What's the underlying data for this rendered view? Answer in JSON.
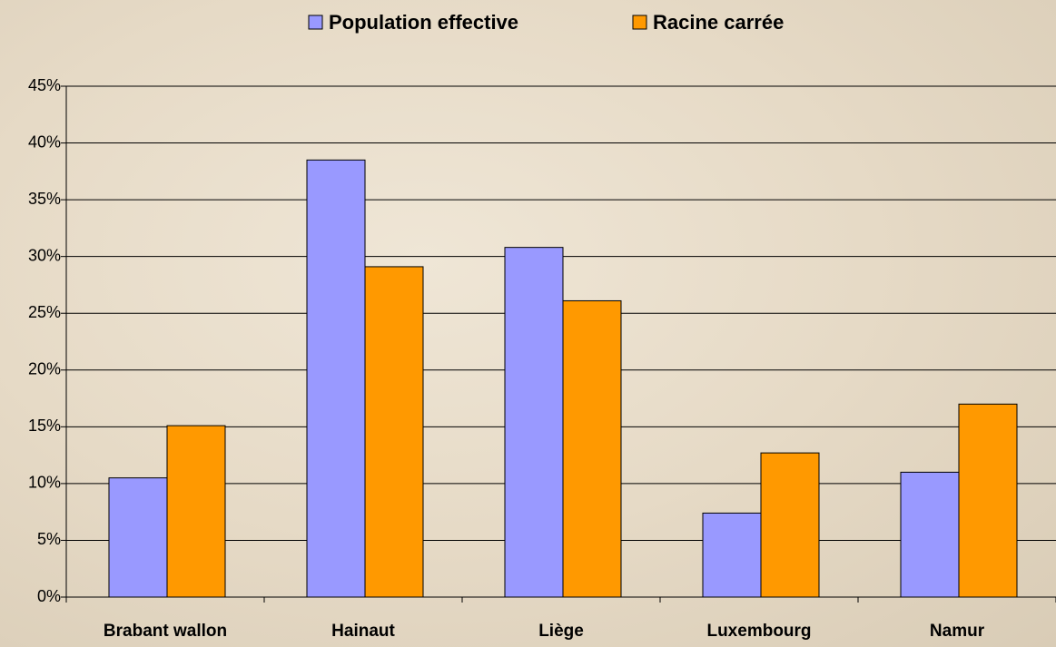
{
  "chart_data": {
    "type": "bar",
    "categories": [
      "Brabant wallon",
      "Hainaut",
      "Liège",
      "Luxembourg",
      "Namur"
    ],
    "series": [
      {
        "name": "Population effective",
        "color": "#9999ff",
        "values": [
          10.5,
          38.5,
          30.8,
          7.4,
          11.0
        ]
      },
      {
        "name": "Racine carrée",
        "color": "#ff9900",
        "values": [
          15.1,
          29.1,
          26.1,
          12.7,
          17.0
        ]
      }
    ],
    "ylim": [
      0,
      45
    ],
    "yticks": [
      {
        "value": 0,
        "label": "0%"
      },
      {
        "value": 5,
        "label": "5%"
      },
      {
        "value": 10,
        "label": "10%"
      },
      {
        "value": 15,
        "label": "15%"
      },
      {
        "value": 20,
        "label": "20%"
      },
      {
        "value": 25,
        "label": "25%"
      },
      {
        "value": 30,
        "label": "30%"
      },
      {
        "value": 35,
        "label": "35%"
      },
      {
        "value": 40,
        "label": "40%"
      },
      {
        "value": 45,
        "label": "45%"
      }
    ],
    "grid": true,
    "legend": "top"
  }
}
